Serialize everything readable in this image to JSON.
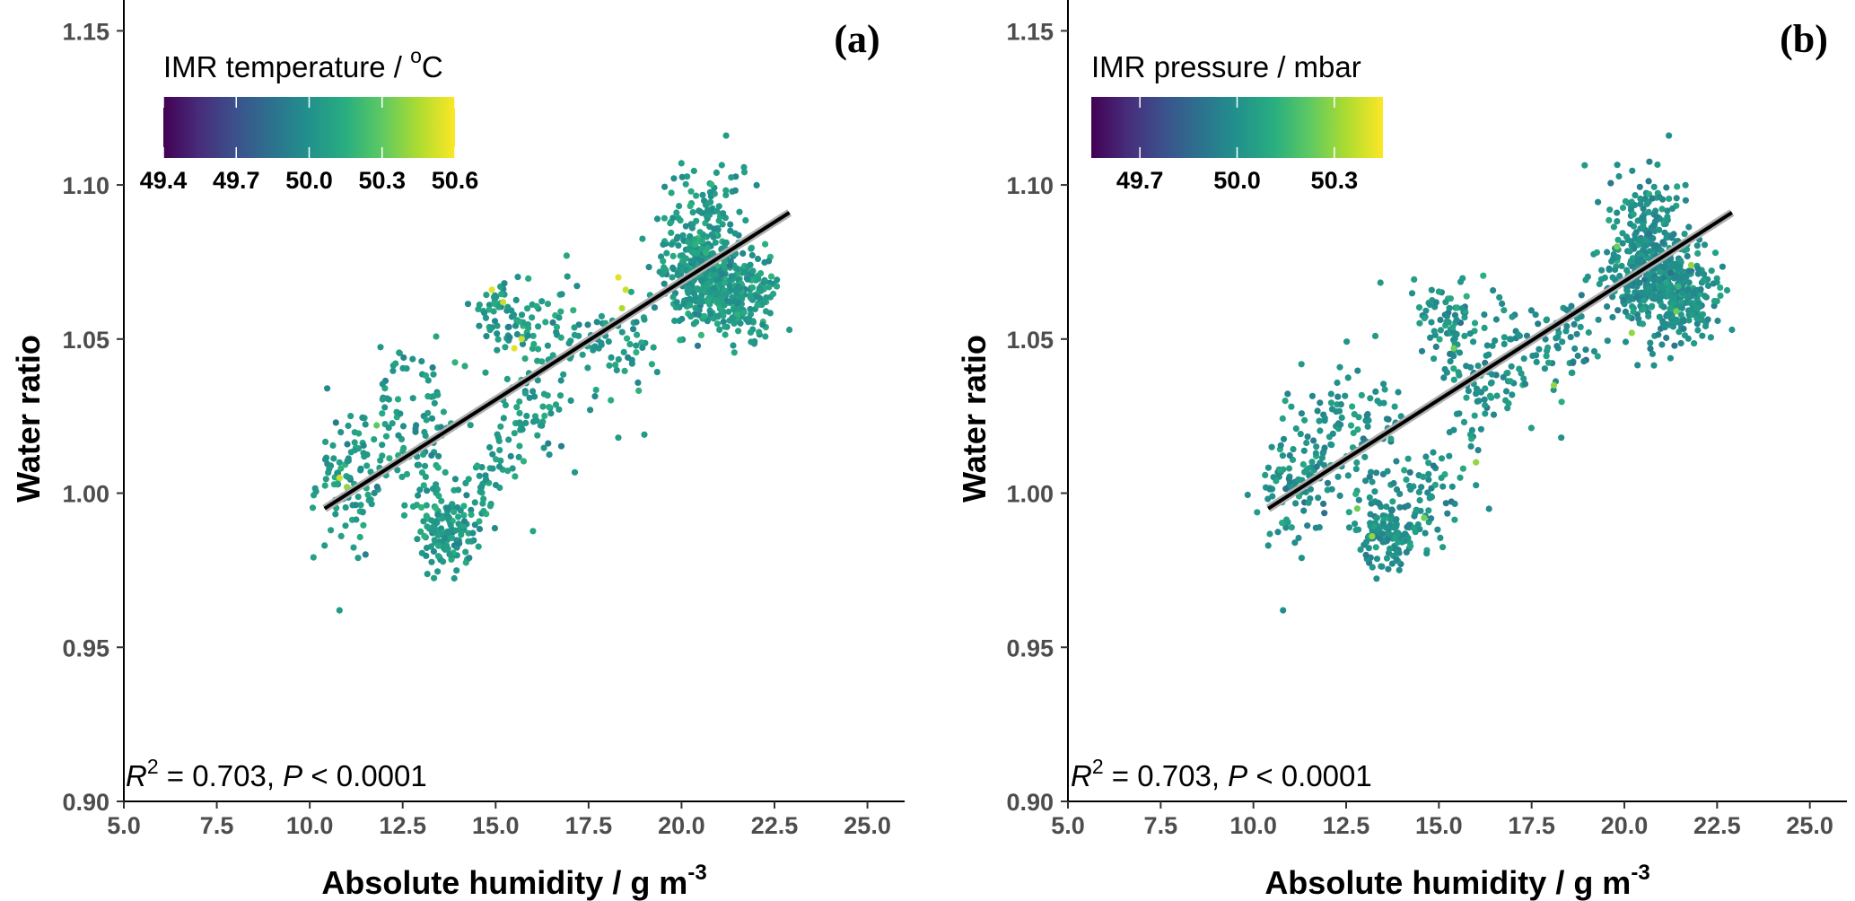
{
  "figure": {
    "colors": {
      "axis": "#000000",
      "tick_text": "#4d4d4d",
      "fit_line": "#000000",
      "fit_band": "#b0b0b0"
    }
  },
  "chart_data": [
    {
      "type": "scatter",
      "panel_label": "(a)",
      "xlabel_text": "Absolute humidity / g m",
      "xlabel_sup": "-3",
      "ylabel": "Water ratio",
      "xlim": [
        5.0,
        26.0
      ],
      "ylim": [
        0.9,
        1.16
      ],
      "xticks": [
        "5.0",
        "7.5",
        "10.0",
        "12.5",
        "15.0",
        "17.5",
        "20.0",
        "22.5",
        "25.0"
      ],
      "yticks": [
        "0.90",
        "0.95",
        "1.00",
        "1.05",
        "1.10",
        "1.15"
      ],
      "fit_line": {
        "x_start": 10.4,
        "y_start": 0.995,
        "x_end": 22.9,
        "y_end": 1.091
      },
      "annotation": {
        "r2_label": "R",
        "r2_sup": "2",
        "r2_value": " = 0.703, ",
        "p_label": "P",
        "p_value": " < 0.0001"
      },
      "legend": {
        "title_text": "IMR temperature / ",
        "title_sup": "o",
        "title_unit": "C",
        "tick_labels": [
          "49.4",
          "49.7",
          "50.0",
          "50.3",
          "50.6"
        ],
        "range": [
          49.4,
          50.6
        ],
        "tick_values": [
          49.4,
          49.7,
          50.0,
          50.3,
          50.6
        ]
      },
      "colormap": "viridis",
      "point_color_default": 50.05,
      "point_color_outliers": [
        {
          "x": 14.9,
          "y": 1.066,
          "c": 50.55
        },
        {
          "x": 15.2,
          "y": 1.062,
          "c": 50.5
        },
        {
          "x": 15.5,
          "y": 1.047,
          "c": 50.55
        },
        {
          "x": 15.7,
          "y": 1.05,
          "c": 50.5
        },
        {
          "x": 18.3,
          "y": 1.07,
          "c": 50.55
        },
        {
          "x": 18.5,
          "y": 1.066,
          "c": 50.5
        },
        {
          "x": 18.4,
          "y": 1.06,
          "c": 50.45
        },
        {
          "x": 10.8,
          "y": 1.005,
          "c": 50.5
        },
        {
          "x": 11.0,
          "y": 1.002,
          "c": 50.4
        },
        {
          "x": 11.8,
          "y": 1.022,
          "c": 50.3
        }
      ],
      "clusters": [
        {
          "x": 11.2,
          "y": 1.004,
          "sx": 0.55,
          "sy": 0.009,
          "n": 90
        },
        {
          "x": 12.2,
          "y": 1.02,
          "sx": 0.55,
          "sy": 0.01,
          "n": 60
        },
        {
          "x": 13.7,
          "y": 0.988,
          "sx": 0.4,
          "sy": 0.006,
          "n": 140
        },
        {
          "x": 13.3,
          "y": 1.018,
          "sx": 0.4,
          "sy": 0.014,
          "n": 50
        },
        {
          "x": 14.8,
          "y": 1.002,
          "sx": 0.3,
          "sy": 0.008,
          "n": 40
        },
        {
          "x": 15.3,
          "y": 1.058,
          "sx": 0.5,
          "sy": 0.007,
          "n": 70
        },
        {
          "x": 15.9,
          "y": 1.028,
          "sx": 0.4,
          "sy": 0.012,
          "n": 50
        },
        {
          "x": 16.6,
          "y": 1.045,
          "sx": 0.55,
          "sy": 0.012,
          "n": 50
        },
        {
          "x": 18.3,
          "y": 1.05,
          "sx": 0.65,
          "sy": 0.008,
          "n": 60
        },
        {
          "x": 20.6,
          "y": 1.072,
          "sx": 0.55,
          "sy": 0.01,
          "n": 380
        },
        {
          "x": 21.7,
          "y": 1.064,
          "sx": 0.4,
          "sy": 0.007,
          "n": 180
        },
        {
          "x": 20.6,
          "y": 1.095,
          "sx": 0.55,
          "sy": 0.006,
          "n": 50
        }
      ],
      "extra_points": [
        {
          "x": 10.8,
          "y": 0.962
        },
        {
          "x": 19.0,
          "y": 1.019
        },
        {
          "x": 18.3,
          "y": 1.018
        },
        {
          "x": 21.2,
          "y": 1.116
        },
        {
          "x": 22.9,
          "y": 1.053
        },
        {
          "x": 10.4,
          "y": 0.983
        },
        {
          "x": 11.3,
          "y": 0.979
        }
      ]
    },
    {
      "type": "scatter",
      "panel_label": "(b)",
      "xlabel_text": "Absolute humidity / g m",
      "xlabel_sup": "-3",
      "ylabel": "Water ratio",
      "xlim": [
        5.0,
        26.0
      ],
      "ylim": [
        0.9,
        1.16
      ],
      "xticks": [
        "5.0",
        "7.5",
        "10.0",
        "12.5",
        "15.0",
        "17.5",
        "20.0",
        "22.5",
        "25.0"
      ],
      "yticks": [
        "0.90",
        "0.95",
        "1.00",
        "1.05",
        "1.10",
        "1.15"
      ],
      "fit_line": {
        "x_start": 10.4,
        "y_start": 0.995,
        "x_end": 22.9,
        "y_end": 1.091
      },
      "annotation": {
        "r2_label": "R",
        "r2_sup": "2",
        "r2_value": " = 0.703, ",
        "p_label": "P",
        "p_value": " < 0.0001"
      },
      "legend": {
        "title_text": "IMR pressure / mbar",
        "title_sup": "",
        "title_unit": "",
        "tick_labels": [
          "49.7",
          "50.0",
          "50.3"
        ],
        "range": [
          49.55,
          50.45
        ],
        "tick_values": [
          49.7,
          50.0,
          50.3
        ]
      },
      "colormap": "viridis",
      "point_color_default": 50.0,
      "point_color_outliers": [
        {
          "x": 13.2,
          "y": 0.986,
          "c": 50.3
        },
        {
          "x": 14.6,
          "y": 0.992,
          "c": 50.25
        },
        {
          "x": 15.4,
          "y": 1.047,
          "c": 50.25
        },
        {
          "x": 18.1,
          "y": 1.035,
          "c": 50.3
        },
        {
          "x": 20.2,
          "y": 1.052,
          "c": 50.3
        },
        {
          "x": 21.4,
          "y": 1.059,
          "c": 50.25
        },
        {
          "x": 12.8,
          "y": 0.995,
          "c": 50.25
        },
        {
          "x": 16.0,
          "y": 1.01,
          "c": 50.3
        },
        {
          "x": 19.8,
          "y": 1.08,
          "c": 50.25
        },
        {
          "x": 21.8,
          "y": 1.074,
          "c": 50.3
        }
      ],
      "clusters": [
        {
          "x": 11.2,
          "y": 1.004,
          "sx": 0.55,
          "sy": 0.009,
          "n": 90
        },
        {
          "x": 12.2,
          "y": 1.02,
          "sx": 0.55,
          "sy": 0.01,
          "n": 60
        },
        {
          "x": 13.7,
          "y": 0.988,
          "sx": 0.4,
          "sy": 0.006,
          "n": 140
        },
        {
          "x": 13.3,
          "y": 1.018,
          "sx": 0.4,
          "sy": 0.014,
          "n": 50
        },
        {
          "x": 14.8,
          "y": 1.002,
          "sx": 0.3,
          "sy": 0.008,
          "n": 40
        },
        {
          "x": 15.3,
          "y": 1.058,
          "sx": 0.5,
          "sy": 0.007,
          "n": 70
        },
        {
          "x": 15.9,
          "y": 1.028,
          "sx": 0.4,
          "sy": 0.012,
          "n": 50
        },
        {
          "x": 16.6,
          "y": 1.045,
          "sx": 0.55,
          "sy": 0.012,
          "n": 50
        },
        {
          "x": 18.3,
          "y": 1.05,
          "sx": 0.65,
          "sy": 0.008,
          "n": 60
        },
        {
          "x": 20.6,
          "y": 1.072,
          "sx": 0.55,
          "sy": 0.01,
          "n": 380
        },
        {
          "x": 21.7,
          "y": 1.064,
          "sx": 0.4,
          "sy": 0.007,
          "n": 180
        },
        {
          "x": 20.6,
          "y": 1.095,
          "sx": 0.55,
          "sy": 0.006,
          "n": 50
        }
      ],
      "extra_points": [
        {
          "x": 10.8,
          "y": 0.962
        },
        {
          "x": 18.3,
          "y": 1.018
        },
        {
          "x": 21.2,
          "y": 1.116
        },
        {
          "x": 22.9,
          "y": 1.053
        },
        {
          "x": 10.4,
          "y": 0.983
        },
        {
          "x": 11.3,
          "y": 0.979
        }
      ]
    }
  ]
}
